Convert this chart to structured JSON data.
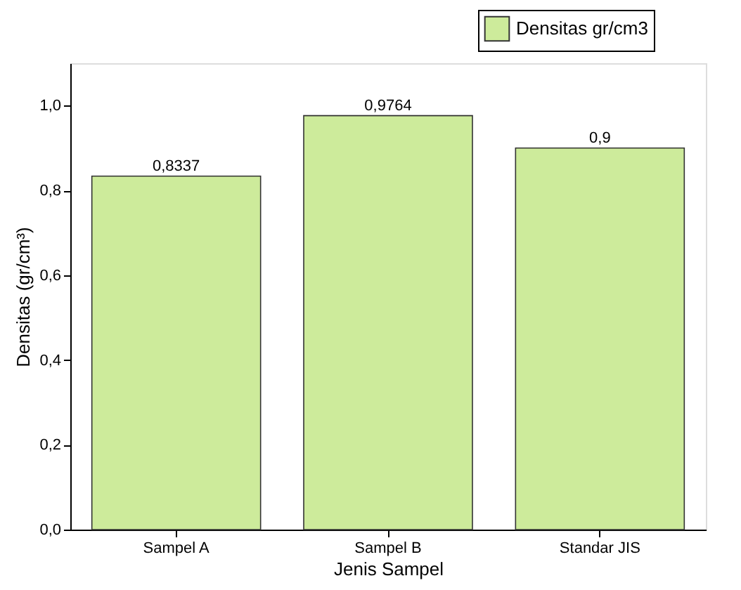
{
  "chart_data": {
    "type": "bar",
    "categories": [
      "Sampel A",
      "Sampel B",
      "Standar JIS"
    ],
    "series": [
      {
        "name": "Densitas gr/cm3",
        "color": "#cdeb9b",
        "values": [
          0.8337,
          0.9764,
          0.9
        ]
      }
    ],
    "value_labels": [
      "0,8337",
      "0,9764",
      "0,9"
    ],
    "xlabel": "Jenis Sampel",
    "ylabel": "Densitas (gr/cm³)",
    "ylim": [
      0,
      1.1
    ],
    "yticks": [
      {
        "value": 0,
        "label": "0,0"
      },
      {
        "value": 0.2,
        "label": "0,2"
      },
      {
        "value": 0.4,
        "label": "0,4"
      },
      {
        "value": 0.6,
        "label": "0,6"
      },
      {
        "value": 0.8,
        "label": "0,8"
      },
      {
        "value": 1.0,
        "label": "1,0"
      }
    ],
    "legend": "top right",
    "grid": false
  }
}
